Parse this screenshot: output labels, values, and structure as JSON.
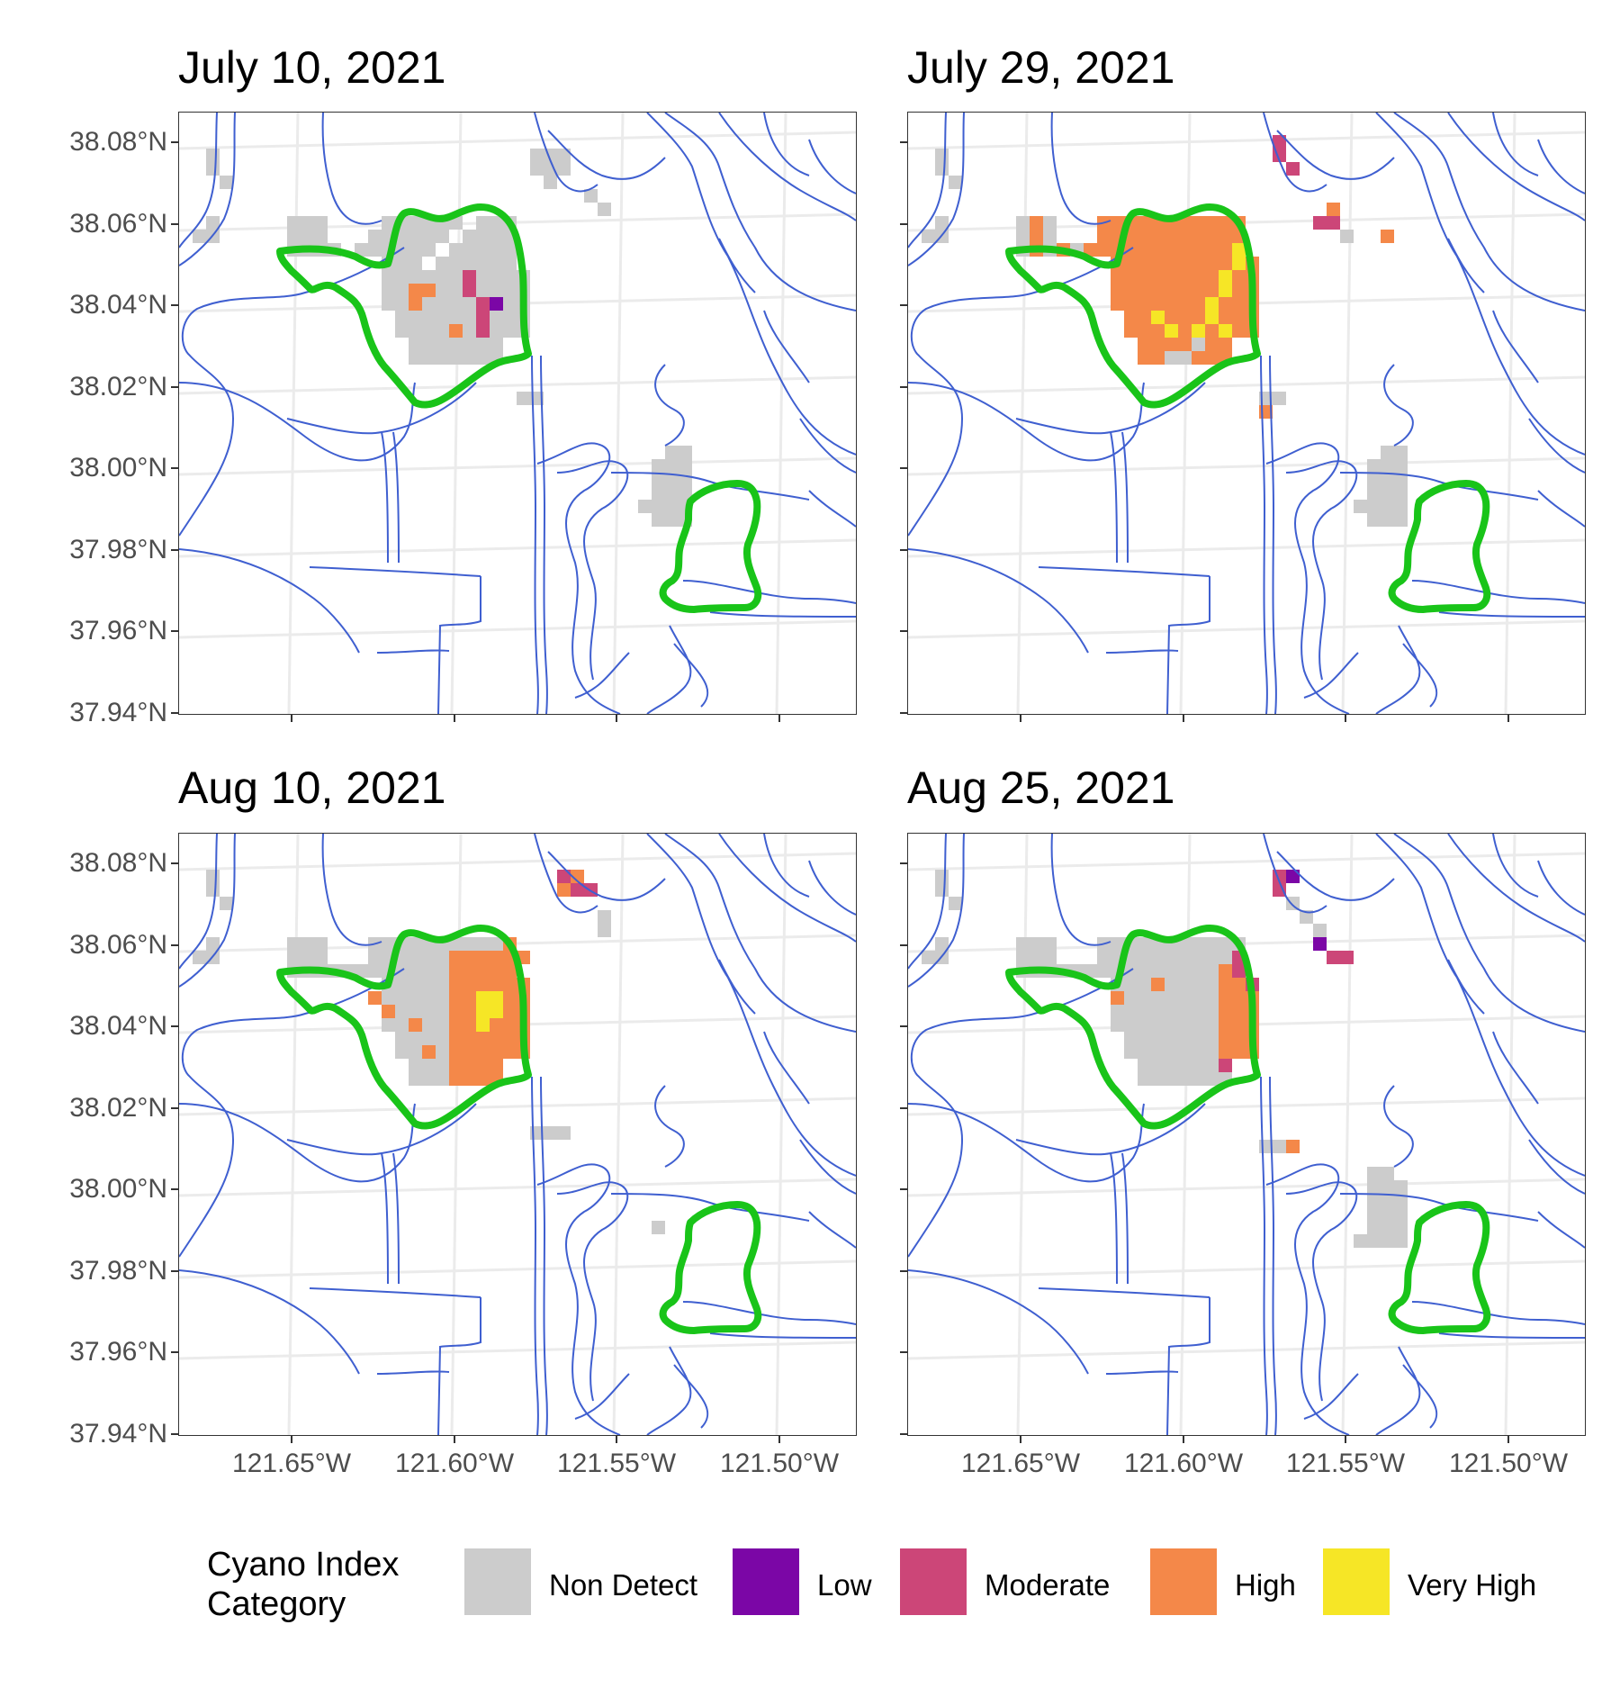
{
  "panels": [
    {
      "title": "July 10, 2021",
      "pixels": [
        [
          "nd",
          [
            1,
            30
          ],
          [
            1,
            31
          ],
          [
            4,
            45
          ],
          [
            3,
            34
          ],
          [
            3,
            35
          ],
          [
            16,
            31
          ],
          [
            16,
            32
          ],
          [
            21,
            34
          ],
          [
            22,
            38
          ]
        ]
      ]
    },
    {
      "title": "July 29, 2021",
      "pixels": []
    },
    {
      "title": "Aug 10, 2021",
      "pixels": []
    },
    {
      "title": "Aug 25, 2021",
      "pixels": []
    }
  ],
  "y_ticks": [
    "38.08°N",
    "38.06°N",
    "38.04°N",
    "38.02°N",
    "38.00°N",
    "37.98°N",
    "37.96°N",
    "37.94°N"
  ],
  "x_ticks": [
    "121.65°W",
    "121.60°W",
    "121.55°W",
    "121.50°W"
  ],
  "legend": {
    "title_line1": "Cyano Index",
    "title_line2": "Category",
    "items": [
      {
        "key": "nd",
        "label": "Non Detect",
        "color": "#cccccc"
      },
      {
        "key": "low",
        "label": "Low",
        "color": "#7b06a6"
      },
      {
        "key": "mod",
        "label": "Moderate",
        "color": "#cc4678"
      },
      {
        "key": "high",
        "label": "High",
        "color": "#f48849"
      },
      {
        "key": "vhigh",
        "label": "Very High",
        "color": "#f6e626"
      }
    ]
  },
  "colors": {
    "water_line": "#3f5fd0",
    "region_outline": "#19c419",
    "grid": "#ebebeb"
  }
}
